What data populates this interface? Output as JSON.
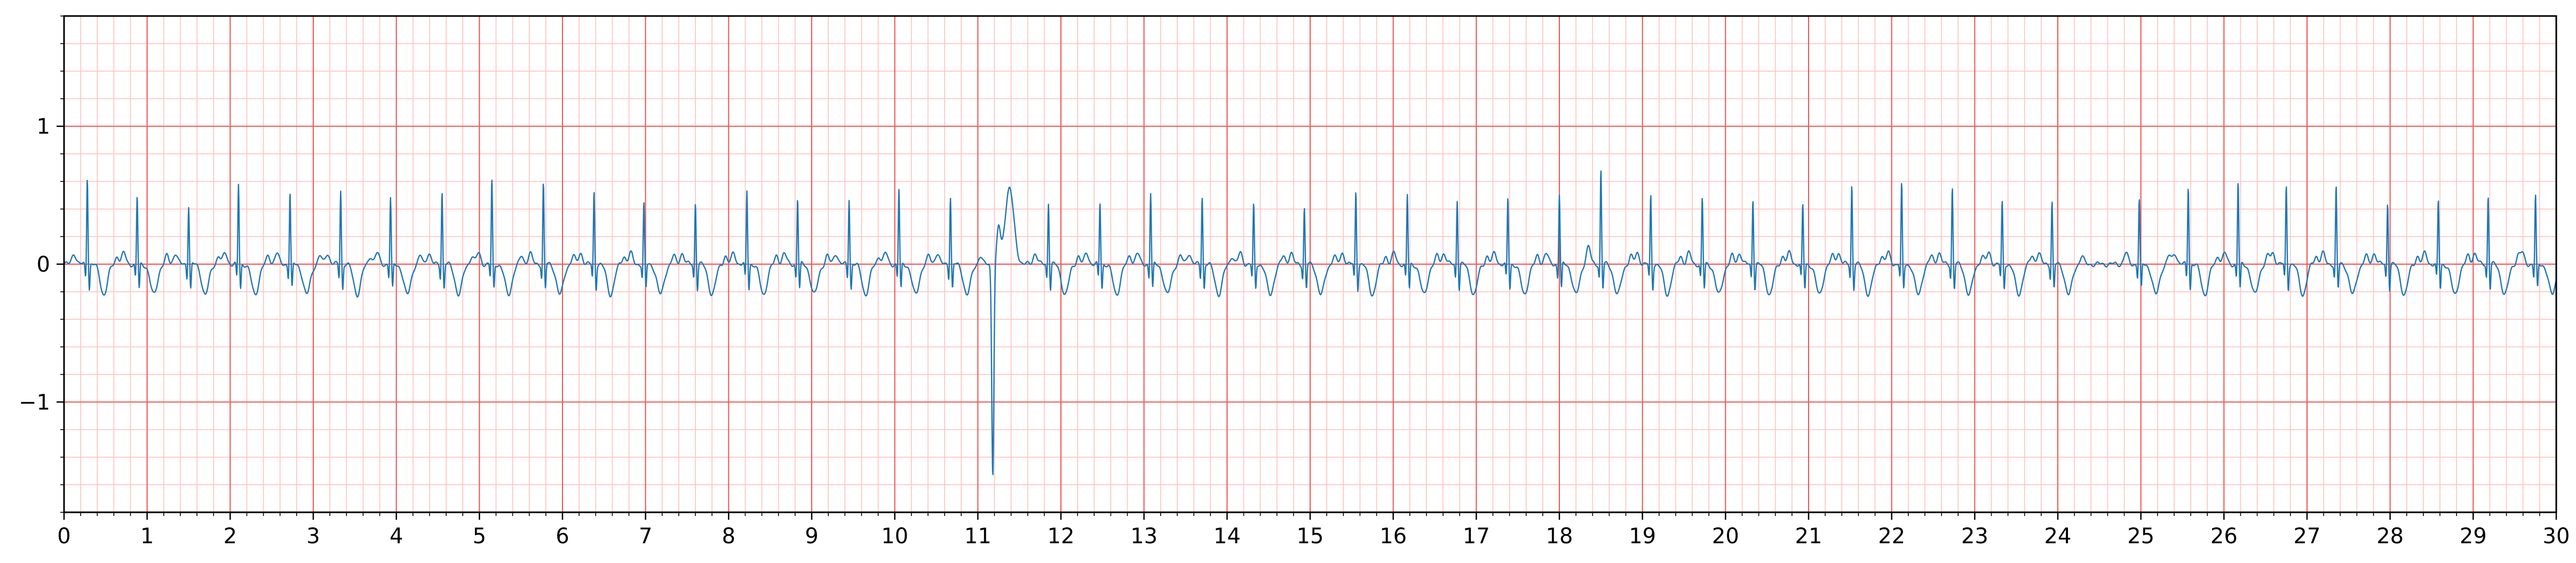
{
  "chart_data": {
    "type": "line",
    "title": "",
    "xlabel": "",
    "ylabel": "",
    "xlim": [
      0,
      30
    ],
    "ylim": [
      -1.8,
      1.8
    ],
    "x_ticks": [
      0,
      1,
      2,
      3,
      4,
      5,
      6,
      7,
      8,
      9,
      10,
      11,
      12,
      13,
      14,
      15,
      16,
      17,
      18,
      19,
      20,
      21,
      22,
      23,
      24,
      25,
      26,
      27,
      28,
      29,
      30
    ],
    "x_tick_labels": [
      "0",
      "1",
      "2",
      "3",
      "4",
      "5",
      "6",
      "7",
      "8",
      "9",
      "10",
      "11",
      "12",
      "13",
      "14",
      "15",
      "16",
      "17",
      "18",
      "19",
      "20",
      "21",
      "22",
      "23",
      "24",
      "25",
      "26",
      "27",
      "28",
      "29",
      "30"
    ],
    "y_ticks": [
      -1,
      0,
      1
    ],
    "y_tick_labels": [
      "−1",
      "0",
      "1"
    ],
    "grid": {
      "major_x_step": 1,
      "major_y_step": 1,
      "minor_x_step": 0.2,
      "minor_y_step": 0.2,
      "major_color": "#ef5350",
      "minor_color": "#ffc0c0"
    },
    "line_color": "#1f77b4",
    "series": [
      {
        "beats": [
          [
            0.28,
            0.64,
            1.0
          ],
          [
            0.88,
            0.49,
            1.0
          ],
          [
            1.5,
            0.43,
            1.0
          ],
          [
            2.1,
            0.58,
            1.0
          ],
          [
            2.72,
            0.52,
            1.0
          ],
          [
            3.33,
            0.54,
            1.0
          ],
          [
            3.93,
            0.48,
            1.0
          ],
          [
            4.55,
            0.53,
            1.0
          ],
          [
            5.15,
            0.61,
            1.0
          ],
          [
            5.77,
            0.59,
            1.0
          ],
          [
            6.38,
            0.53,
            1.0
          ],
          [
            6.98,
            0.44,
            1.0
          ],
          [
            7.6,
            0.45,
            1.0
          ],
          [
            8.22,
            0.53,
            1.0
          ],
          [
            8.83,
            0.48,
            1.0
          ],
          [
            9.45,
            0.48,
            1.0
          ],
          [
            10.05,
            0.54,
            1.0
          ],
          [
            10.67,
            0.5,
            1.0
          ],
          [
            11.85,
            0.45,
            1.0
          ],
          [
            12.47,
            0.45,
            1.0
          ],
          [
            13.08,
            0.52,
            1.0
          ],
          [
            13.7,
            0.5,
            1.0
          ],
          [
            14.32,
            0.43,
            1.0
          ],
          [
            14.93,
            0.41,
            1.0
          ],
          [
            15.55,
            0.53,
            1.0
          ],
          [
            16.17,
            0.5,
            1.0
          ],
          [
            16.77,
            0.47,
            1.0
          ],
          [
            17.38,
            0.48,
            1.0
          ],
          [
            18.0,
            0.51,
            1.0
          ],
          [
            18.5,
            0.69,
            1.0
          ],
          [
            19.1,
            0.5,
            1.0
          ],
          [
            19.72,
            0.48,
            1.0
          ],
          [
            20.33,
            0.48,
            1.0
          ],
          [
            20.93,
            0.43,
            1.0
          ],
          [
            21.52,
            0.58,
            1.0
          ],
          [
            22.12,
            0.58,
            1.0
          ],
          [
            22.73,
            0.56,
            1.0
          ],
          [
            23.33,
            0.45,
            1.0
          ],
          [
            23.93,
            0.46,
            1.0
          ],
          [
            24.98,
            0.47,
            1.0
          ],
          [
            25.57,
            0.57,
            1.0
          ],
          [
            26.17,
            0.6,
            1.0
          ],
          [
            26.75,
            0.57,
            1.0
          ],
          [
            27.35,
            0.56,
            1.0
          ],
          [
            27.97,
            0.45,
            1.0
          ],
          [
            28.58,
            0.46,
            1.0
          ],
          [
            29.18,
            0.5,
            1.0
          ],
          [
            29.75,
            0.5,
            1.0
          ]
        ],
        "ectopic_beats": [
          {
            "x": 11.18,
            "y_min": -1.52,
            "y_max": 0.55
          }
        ]
      }
    ]
  }
}
